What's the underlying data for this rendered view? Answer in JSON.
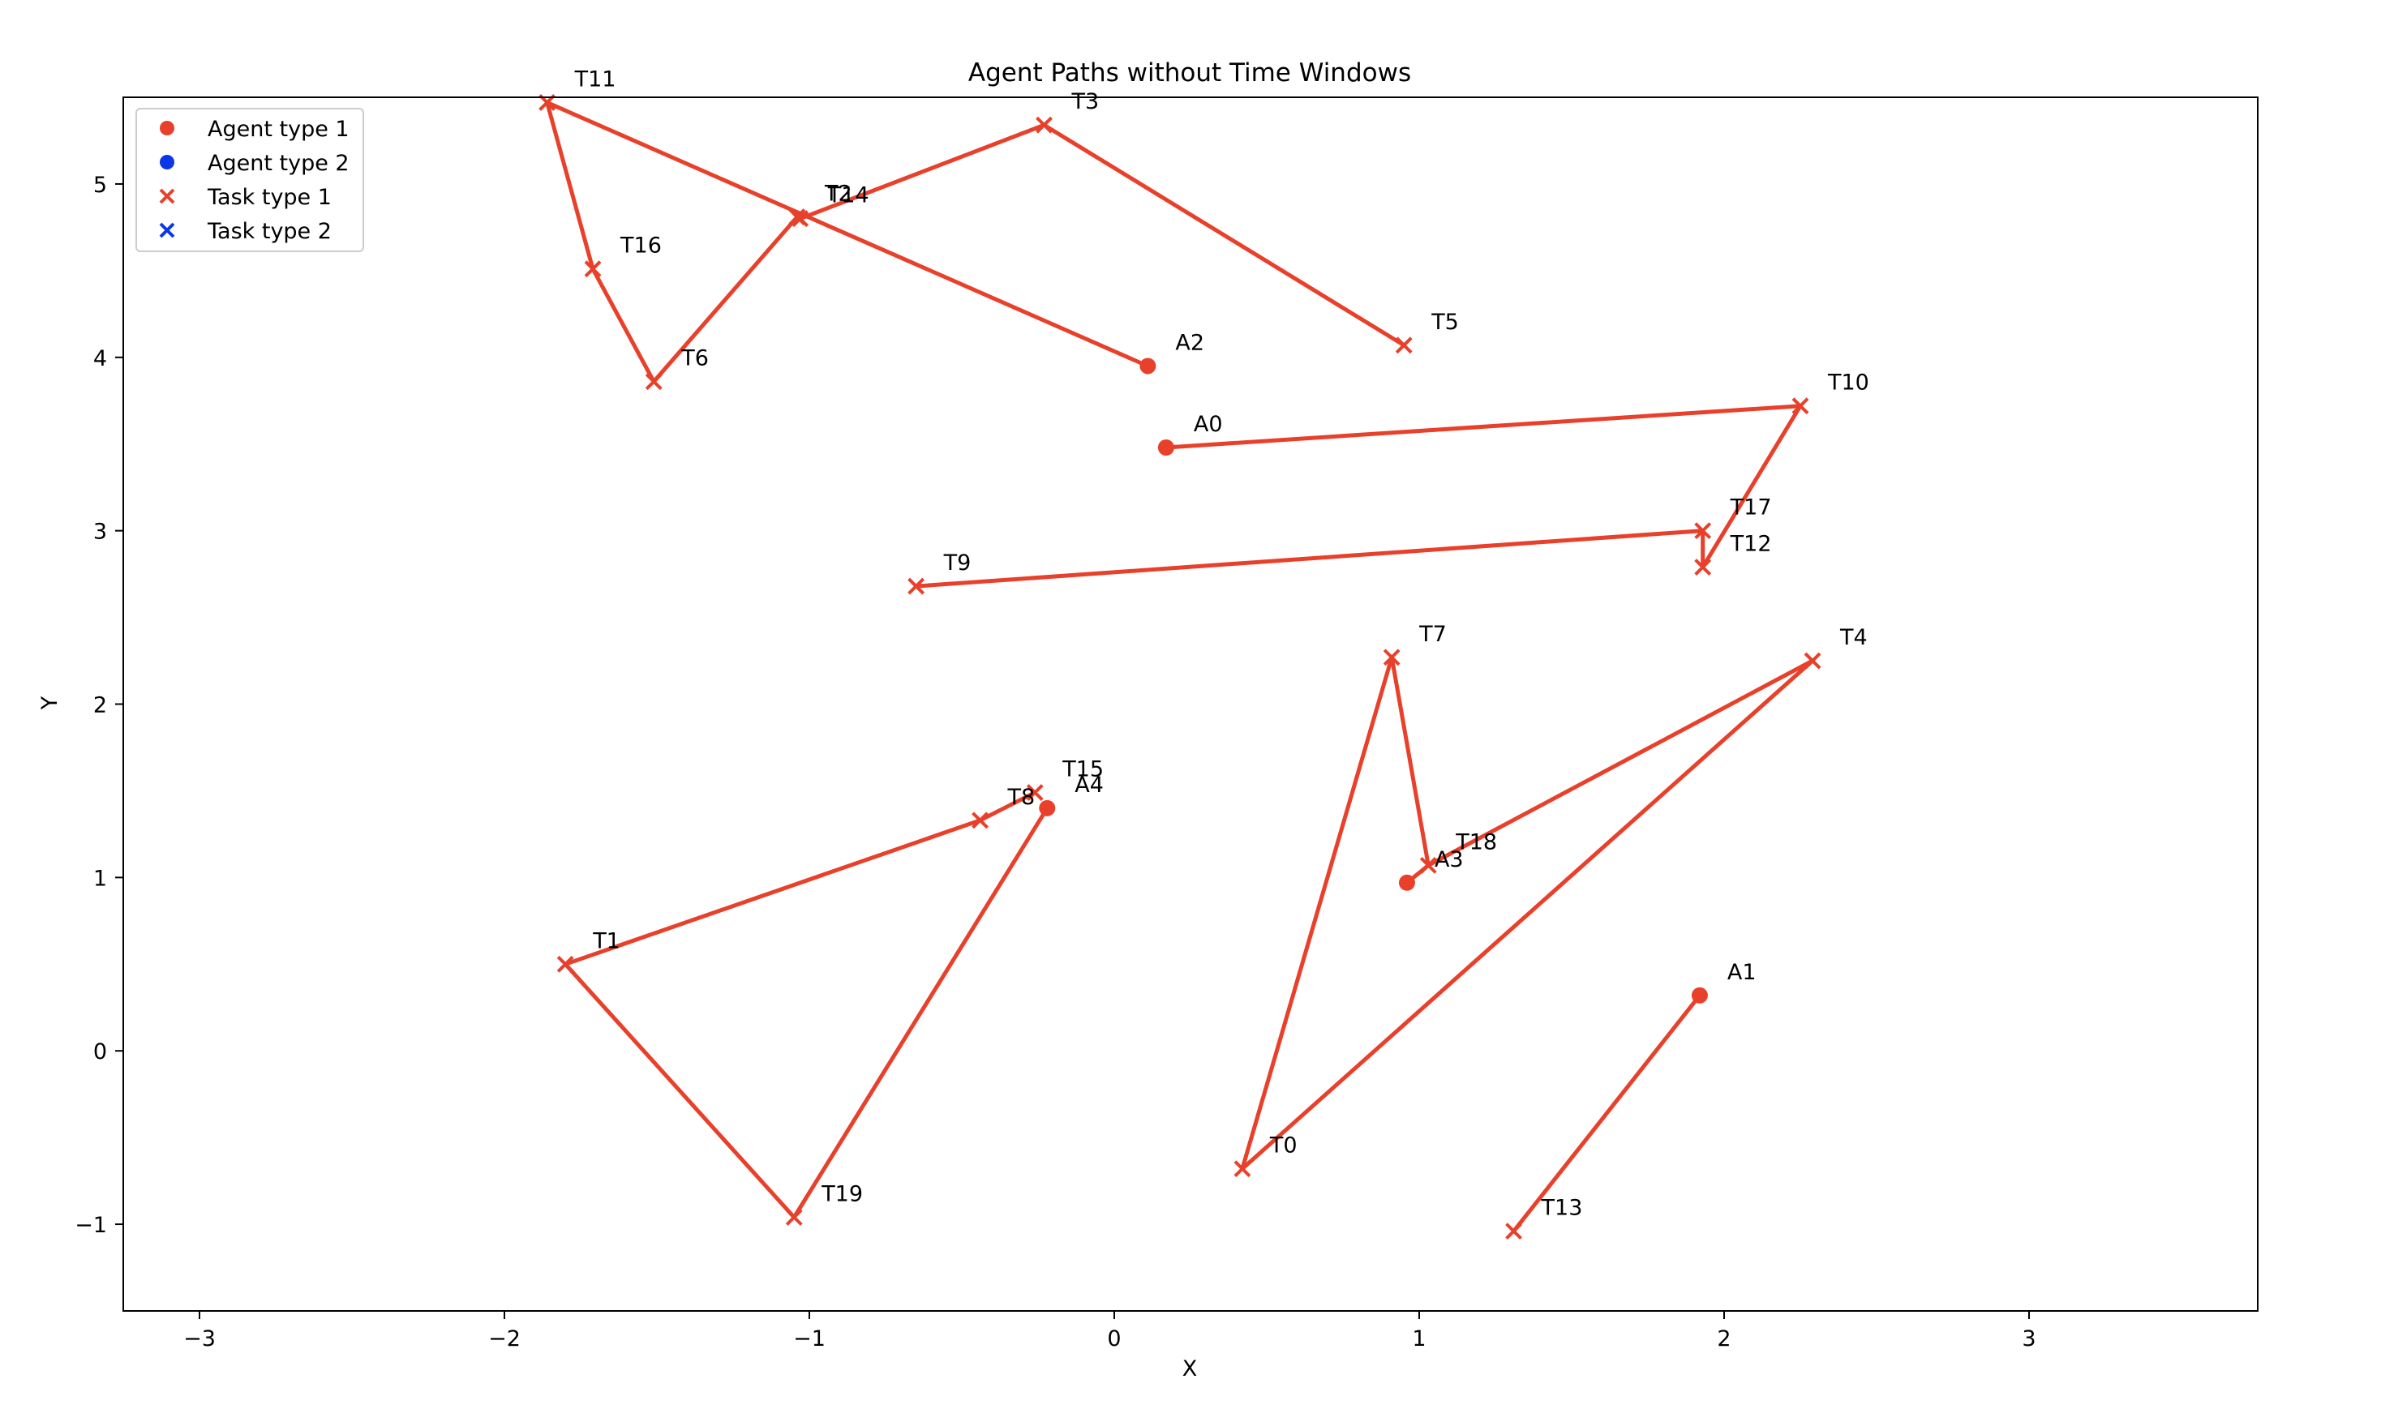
{
  "chart_data": {
    "type": "scatter",
    "title": "Agent Paths without Time Windows",
    "xlabel": "X",
    "ylabel": "Y",
    "xlim": [
      -3.25,
      3.75
    ],
    "ylim": [
      -1.5,
      5.5
    ],
    "xticks": [
      -3,
      -2,
      -1,
      0,
      1,
      2,
      3
    ],
    "yticks": [
      -1,
      0,
      1,
      2,
      3,
      4,
      5
    ],
    "grid": false,
    "legend": {
      "placement": "top-left",
      "entries": [
        {
          "label": "Agent type 1",
          "marker": "circle",
          "color": "#e8402a"
        },
        {
          "label": "Agent type 2",
          "marker": "circle",
          "color": "#0a37e8"
        },
        {
          "label": "Task type 1",
          "marker": "x",
          "color": "#e8402a"
        },
        {
          "label": "Task type 2",
          "marker": "x",
          "color": "#0a37e8"
        }
      ]
    },
    "colors": {
      "type1": "#e8402a",
      "type2": "#0a37e8"
    },
    "agents": [
      {
        "label": "A0",
        "x": 0.17,
        "y": 3.48,
        "type": 1
      },
      {
        "label": "A1",
        "x": 1.92,
        "y": 0.32,
        "type": 1
      },
      {
        "label": "A2",
        "x": 0.11,
        "y": 3.95,
        "type": 1
      },
      {
        "label": "A3",
        "x": 0.96,
        "y": 0.97,
        "type": 1
      },
      {
        "label": "A4",
        "x": -0.22,
        "y": 1.4,
        "type": 1
      }
    ],
    "tasks": [
      {
        "label": "T0",
        "x": 0.42,
        "y": -0.68,
        "type": 1
      },
      {
        "label": "T1",
        "x": -1.8,
        "y": 0.5,
        "type": 1
      },
      {
        "label": "T2",
        "x": -1.04,
        "y": 4.81,
        "type": 1
      },
      {
        "label": "T3",
        "x": -0.23,
        "y": 5.34,
        "type": 1
      },
      {
        "label": "T4",
        "x": 2.29,
        "y": 2.25,
        "type": 1
      },
      {
        "label": "T5",
        "x": 0.95,
        "y": 4.07,
        "type": 1
      },
      {
        "label": "T6",
        "x": -1.51,
        "y": 3.86,
        "type": 1
      },
      {
        "label": "T7",
        "x": 0.91,
        "y": 2.27,
        "type": 1
      },
      {
        "label": "T8",
        "x": -0.44,
        "y": 1.33,
        "type": 1
      },
      {
        "label": "T9",
        "x": -0.65,
        "y": 2.68,
        "type": 1
      },
      {
        "label": "T10",
        "x": 2.25,
        "y": 3.72,
        "type": 1
      },
      {
        "label": "T11",
        "x": -1.86,
        "y": 5.47,
        "type": 1
      },
      {
        "label": "T12",
        "x": 1.93,
        "y": 2.79,
        "type": 1
      },
      {
        "label": "T13",
        "x": 1.31,
        "y": -1.04,
        "type": 1
      },
      {
        "label": "T14",
        "x": -1.03,
        "y": 4.8,
        "type": 1
      },
      {
        "label": "T15",
        "x": -0.26,
        "y": 1.49,
        "type": 1
      },
      {
        "label": "T16",
        "x": -1.71,
        "y": 4.51,
        "type": 1
      },
      {
        "label": "T17",
        "x": 1.93,
        "y": 3.0,
        "type": 1
      },
      {
        "label": "T18",
        "x": 1.03,
        "y": 1.07,
        "type": 1
      },
      {
        "label": "T19",
        "x": -1.05,
        "y": -0.96,
        "type": 1
      }
    ],
    "paths": [
      {
        "agent": "A0",
        "stops": [
          "A0",
          "T10",
          "T12",
          "T17",
          "T9"
        ]
      },
      {
        "agent": "A1",
        "stops": [
          "A1",
          "T13"
        ]
      },
      {
        "agent": "A2",
        "stops": [
          "A2",
          "T11",
          "T16",
          "T6",
          "T2",
          "T14",
          "T3",
          "T5"
        ]
      },
      {
        "agent": "A3",
        "stops": [
          "A3",
          "T18",
          "T7",
          "T0",
          "T4",
          "T18"
        ]
      },
      {
        "agent": "A4",
        "stops": [
          "A4",
          "T19",
          "T1",
          "T8",
          "T15"
        ]
      }
    ]
  }
}
